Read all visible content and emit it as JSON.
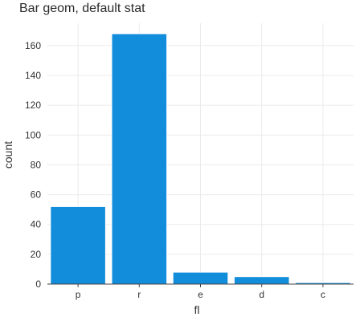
{
  "chart_data": {
    "type": "bar",
    "title": "Bar geom, default stat",
    "xlabel": "fl",
    "ylabel": "count",
    "categories": [
      "p",
      "r",
      "e",
      "d",
      "c"
    ],
    "values": [
      52,
      168,
      8,
      5,
      1
    ],
    "ylim": [
      0,
      175
    ],
    "yticks": [
      0,
      20,
      40,
      60,
      80,
      100,
      120,
      140,
      160
    ],
    "grid": true,
    "legend": "none",
    "bar_color": "#118DDB",
    "bar_outline_color": "#ffffff",
    "grid_color": "#ebebeb",
    "axis_color": "#444444"
  }
}
